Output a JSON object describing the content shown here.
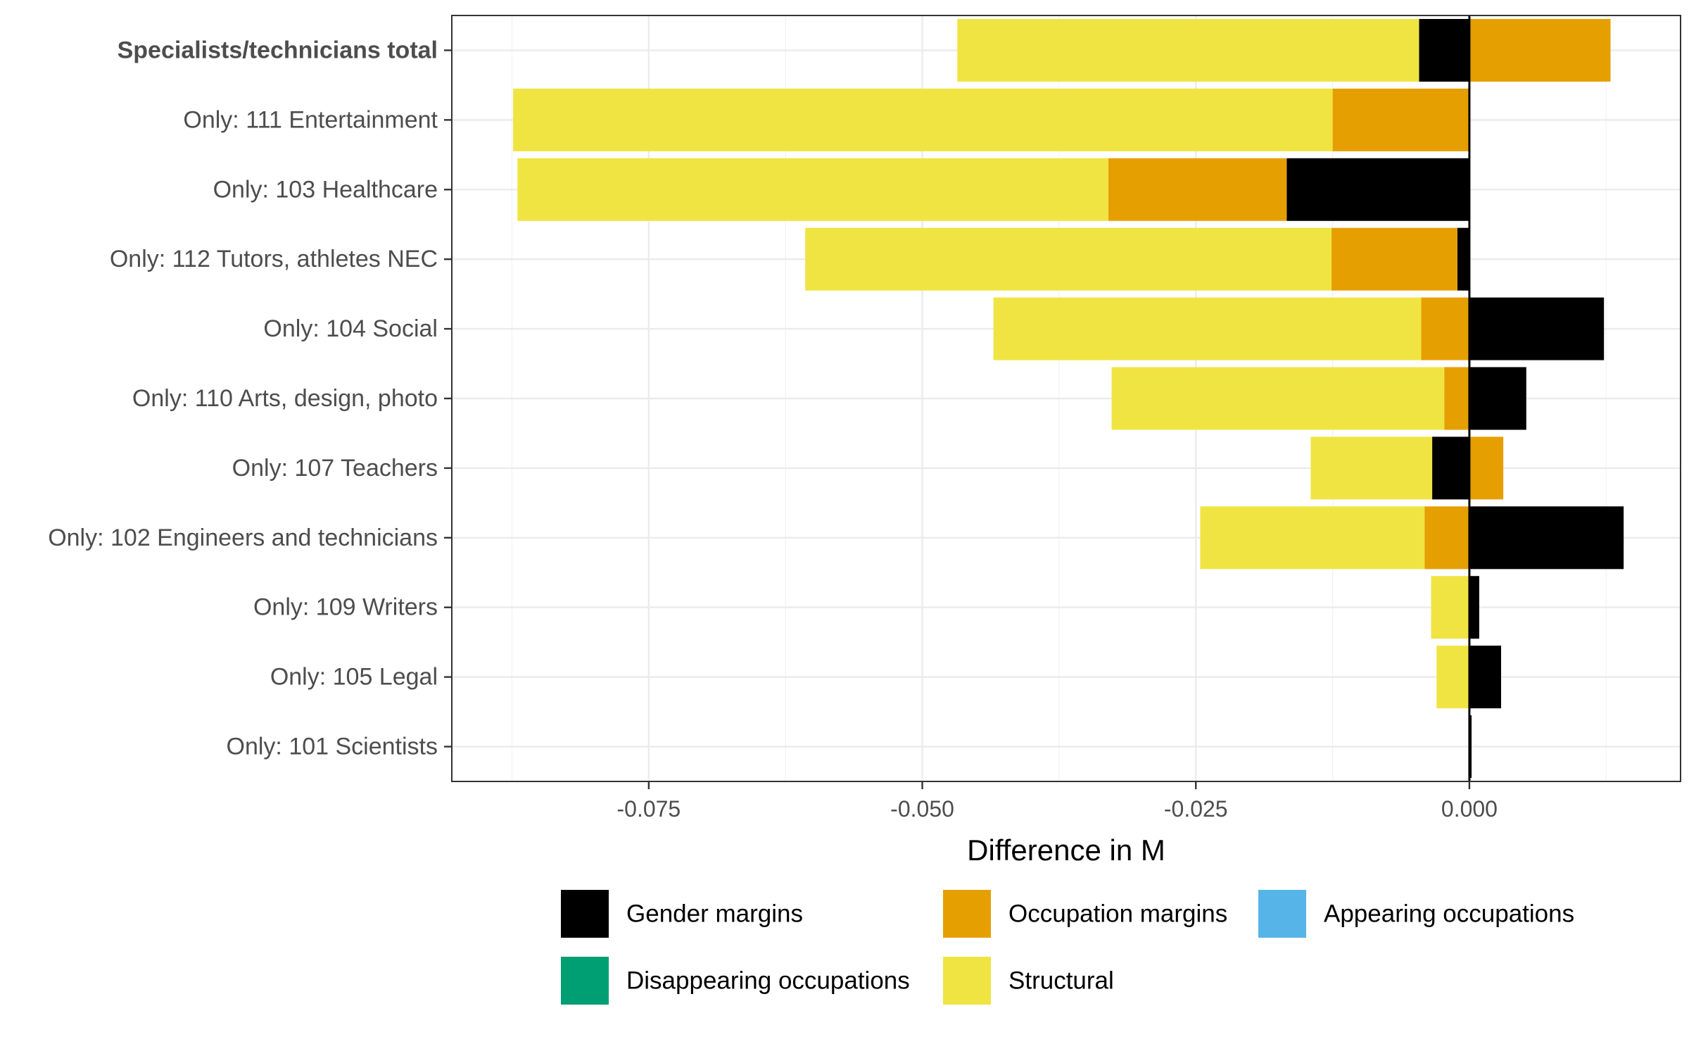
{
  "chart_data": {
    "type": "bar",
    "orientation": "horizontal",
    "stacked": "diverging",
    "xlabel": "Difference in M",
    "ylabel": "",
    "xlim": [
      -0.093,
      0.0193
    ],
    "x_ticks": [
      {
        "value": -0.075,
        "label": "-0.075"
      },
      {
        "value": -0.05,
        "label": "-0.050"
      },
      {
        "value": -0.025,
        "label": "-0.025"
      },
      {
        "value": 0,
        "label": "0.000"
      }
    ],
    "grid": true,
    "legend_position": "bottom",
    "categories": [
      "Specialists/technicians total",
      "Only: 111 Entertainment",
      "Only: 103 Healthcare",
      "Only: 112 Tutors, athletes NEC",
      "Only: 104 Social",
      "Only: 110 Arts, design, photo",
      "Only: 107 Teachers",
      "Only: 102 Engineers and technicians",
      "Only: 109 Writers",
      "Only: 105 Legal",
      "Only: 101 Scientists"
    ],
    "bold_categories": [
      "Specialists/technicians total"
    ],
    "series": [
      {
        "name": "Gender margins",
        "color": "#000000",
        "values": [
          -0.0046,
          0,
          -0.0167,
          -0.0011,
          0.0123,
          0.0052,
          -0.0034,
          0.0141,
          0.0009,
          0.0029,
          0.0002
        ]
      },
      {
        "name": "Occupation margins",
        "color": "#E69F00",
        "values": [
          0.0129,
          -0.0125,
          -0.0163,
          -0.0115,
          -0.0044,
          -0.0023,
          0.0031,
          -0.0041,
          0,
          0,
          0
        ]
      },
      {
        "name": "Appearing occupations",
        "color": "#56B4E9",
        "values": [
          0,
          0,
          0,
          0,
          0,
          0,
          0,
          0,
          0,
          0,
          0
        ]
      },
      {
        "name": "Disappearing occupations",
        "color": "#009E73",
        "values": [
          0,
          0,
          0,
          0,
          0,
          0,
          0,
          0,
          0,
          0,
          0
        ]
      },
      {
        "name": "Structural",
        "color": "#F0E442",
        "values": [
          -0.0422,
          -0.0749,
          -0.054,
          -0.0481,
          -0.0391,
          -0.0304,
          -0.0111,
          -0.0205,
          -0.0035,
          -0.003,
          0
        ]
      }
    ]
  }
}
